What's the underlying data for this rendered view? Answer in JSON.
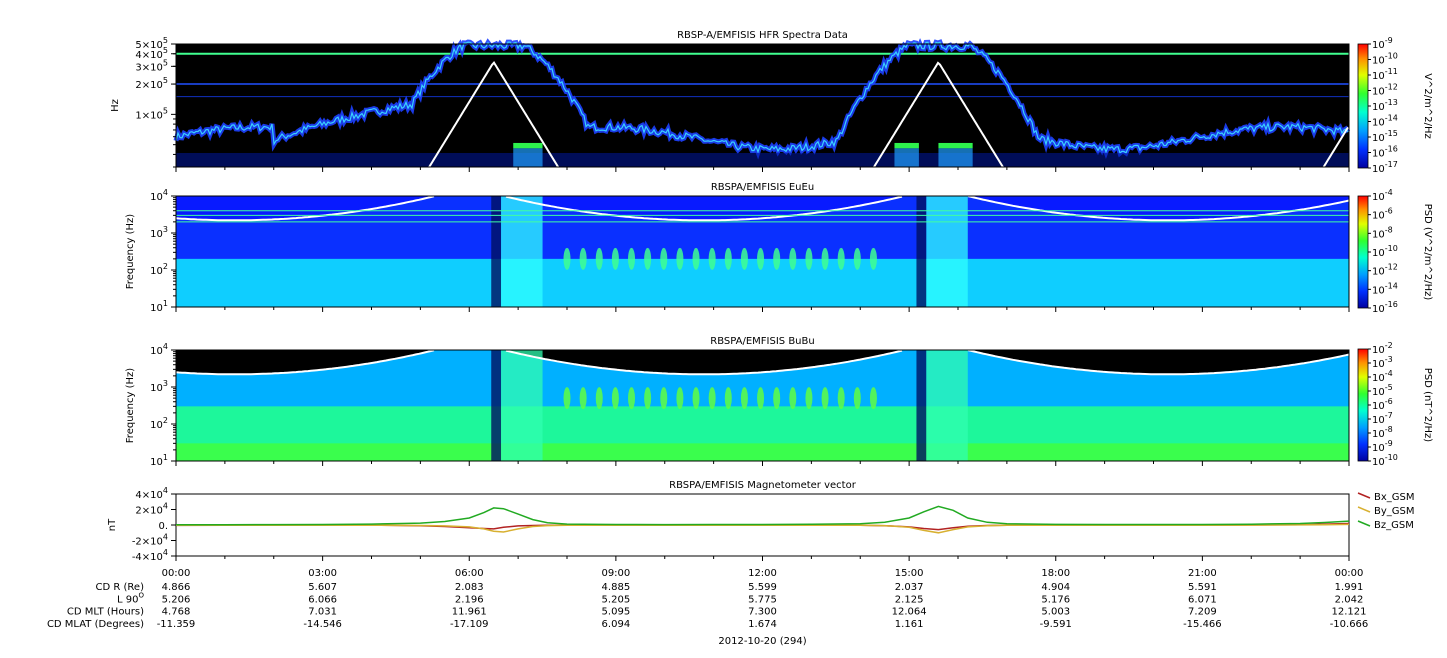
{
  "chart_data": [
    {
      "type": "heatmap",
      "title": "RBSP-A/EMFISIS  HFR Spectra Data",
      "ylabel": "Hz",
      "y_scale": "log",
      "y_ticks": [
        {
          "value": 500000,
          "mantissa": "5",
          "exp": "5"
        },
        {
          "value": 400000,
          "mantissa": "4",
          "exp": "5"
        },
        {
          "value": 300000,
          "mantissa": "3",
          "exp": "5"
        },
        {
          "value": 200000,
          "mantissa": "2",
          "exp": "5"
        },
        {
          "value": 100000,
          "mantissa": "1",
          "exp": "5"
        }
      ],
      "colorbar_label": "V^2/m^2/Hz",
      "colorbar_ticks": [
        "-9",
        "-10",
        "-11",
        "-12",
        "-13",
        "-14",
        "-15",
        "-16",
        "-17"
      ],
      "overlay": "white-curve"
    },
    {
      "type": "heatmap",
      "title": "RBSPA/EMFISIS  EuEu",
      "ylabel": "Frequency (Hz)",
      "y_scale": "log",
      "y_ticks": [
        {
          "value": 10000,
          "mantissa": "10",
          "exp": "4"
        },
        {
          "value": 1000,
          "mantissa": "10",
          "exp": "3"
        },
        {
          "value": 100,
          "mantissa": "10",
          "exp": "2"
        },
        {
          "value": 10,
          "mantissa": "10",
          "exp": "1"
        }
      ],
      "colorbar_label": "PSD (V^2/m^2/Hz)",
      "colorbar_ticks": [
        "-4",
        "-6",
        "-8",
        "-10",
        "-12",
        "-14",
        "-16"
      ],
      "overlay": "white-curve"
    },
    {
      "type": "heatmap",
      "title": "RBSPA/EMFISIS  BuBu",
      "ylabel": "Frequency (Hz)",
      "y_scale": "log",
      "y_ticks": [
        {
          "value": 10000,
          "mantissa": "10",
          "exp": "4"
        },
        {
          "value": 1000,
          "mantissa": "10",
          "exp": "3"
        },
        {
          "value": 100,
          "mantissa": "10",
          "exp": "2"
        },
        {
          "value": 10,
          "mantissa": "10",
          "exp": "1"
        }
      ],
      "colorbar_label": "PSD (nT^2/Hz)",
      "colorbar_ticks": [
        "-2",
        "-3",
        "-4",
        "-5",
        "-6",
        "-7",
        "-8",
        "-9",
        "-10"
      ],
      "overlay": "white-curve"
    },
    {
      "type": "line",
      "title": "RBSPA/EMFISIS  Magnetometer vector",
      "ylabel": "nT",
      "ylim": [
        -40000,
        40000
      ],
      "y_ticks": [
        {
          "value": 40000,
          "mantissa": "4",
          "exp": "4"
        },
        {
          "value": 20000,
          "mantissa": "2",
          "exp": "4"
        },
        {
          "value": 0,
          "mantissa": "0.",
          "exp": ""
        },
        {
          "value": -20000,
          "mantissa": "-2",
          "exp": "4"
        },
        {
          "value": -40000,
          "mantissa": "-4",
          "exp": "4"
        }
      ],
      "x_hours": [
        0,
        1,
        2,
        3,
        4,
        5,
        5.5,
        6,
        6.3,
        6.5,
        6.7,
        7,
        7.3,
        7.6,
        8,
        9,
        10,
        11,
        12,
        13,
        14,
        14.5,
        15,
        15.3,
        15.6,
        15.9,
        16.2,
        16.6,
        17,
        18,
        19,
        20,
        21,
        22,
        23,
        23.5,
        24
      ],
      "series": [
        {
          "name": "Bx_GSM",
          "color": "#b22222",
          "values": [
            -500,
            -400,
            -300,
            -200,
            -300,
            -900,
            -2000,
            -3500,
            -4500,
            -5000,
            -3000,
            -1200,
            -600,
            -300,
            -200,
            -100,
            -100,
            -100,
            -100,
            -200,
            -400,
            -900,
            -2500,
            -4500,
            -6000,
            -3500,
            -1500,
            -700,
            -400,
            -200,
            -100,
            -100,
            -200,
            0,
            400,
            1200,
            2000
          ]
        },
        {
          "name": "By_GSM",
          "color": "#d8b030",
          "values": [
            -300,
            -250,
            -200,
            -200,
            -300,
            -600,
            -1200,
            -2500,
            -5000,
            -8000,
            -9000,
            -5000,
            -2000,
            -800,
            -300,
            -200,
            -200,
            -200,
            -200,
            -200,
            -300,
            -800,
            -3000,
            -7000,
            -10000,
            -6000,
            -2500,
            -900,
            -400,
            -200,
            -200,
            -200,
            -200,
            -100,
            100,
            400,
            800
          ]
        },
        {
          "name": "Bz_GSM",
          "color": "#22aa22",
          "values": [
            300,
            400,
            500,
            700,
            1200,
            2500,
            4500,
            9000,
            16000,
            22000,
            21000,
            14000,
            7000,
            3000,
            1200,
            600,
            500,
            600,
            700,
            900,
            1600,
            3500,
            9000,
            17000,
            24000,
            19000,
            9000,
            3500,
            1500,
            800,
            600,
            600,
            700,
            1000,
            2000,
            3200,
            5000
          ]
        }
      ]
    }
  ],
  "x_axis": {
    "tick_labels": [
      "00:00",
      "03:00",
      "06:00",
      "09:00",
      "12:00",
      "15:00",
      "18:00",
      "21:00",
      "00:00"
    ],
    "tick_hours": [
      0,
      3,
      6,
      9,
      12,
      15,
      18,
      21,
      24
    ],
    "date_label": "2012-10-20 (294)"
  },
  "ephemeris": {
    "rows": [
      {
        "label": "CD R (Re)",
        "values": [
          "4.866",
          "5.607",
          "2.083",
          "4.885",
          "5.599",
          "2.037",
          "4.904",
          "5.591",
          "1.991"
        ]
      },
      {
        "label": "L 90",
        "label_sup": "O",
        "values": [
          "5.206",
          "6.066",
          "2.196",
          "5.205",
          "5.775",
          "2.125",
          "5.176",
          "6.071",
          "2.042"
        ]
      },
      {
        "label": "CD MLT (Hours)",
        "values": [
          "4.768",
          "7.031",
          "11.961",
          "5.095",
          "7.300",
          "12.064",
          "5.003",
          "7.209",
          "12.121"
        ]
      },
      {
        "label": "CD MLAT (Degrees)",
        "values": [
          "-11.359",
          "-14.546",
          "-17.109",
          "6.094",
          "1.674",
          "1.161",
          "-9.591",
          "-15.466",
          "-10.666"
        ]
      }
    ]
  },
  "colors": {
    "background_spectrum": "#000000",
    "overlay_curve": "#ffffff"
  }
}
